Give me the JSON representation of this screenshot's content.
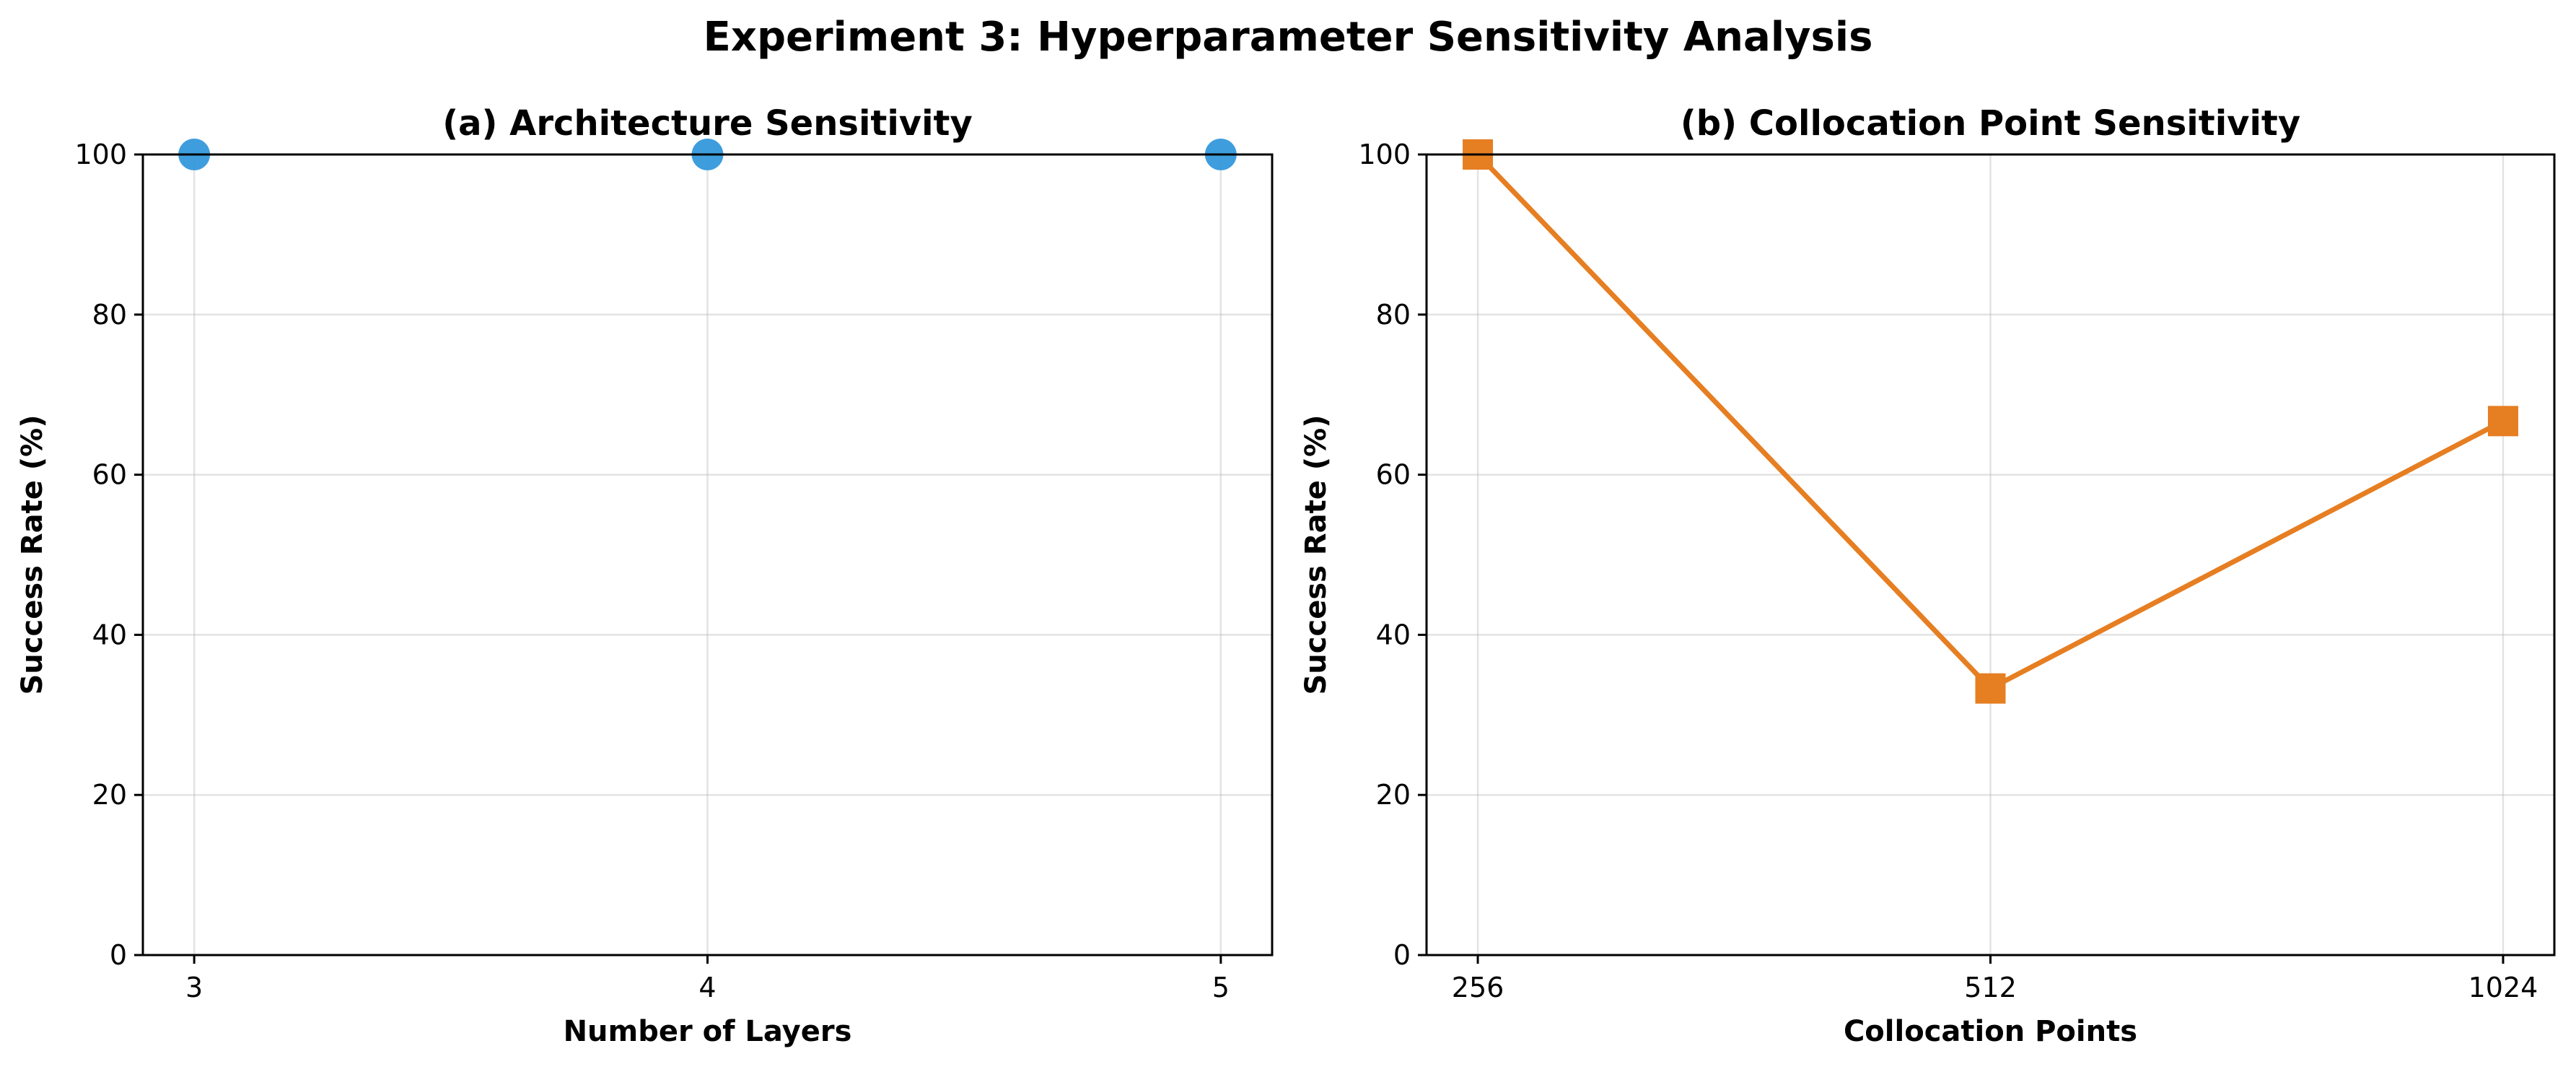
{
  "figure": {
    "title": "Experiment 3: Hyperparameter Sensitivity Analysis"
  },
  "chart_data": [
    {
      "type": "scatter",
      "title": "(a) Architecture Sensitivity",
      "xlabel": "Number of Layers",
      "ylabel": "Success Rate (%)",
      "x": [
        3,
        4,
        5
      ],
      "xtick_labels": [
        "3",
        "4",
        "5"
      ],
      "y": [
        100,
        100,
        100
      ],
      "xlim": [
        2.9,
        5.1
      ],
      "ylim": [
        0,
        100
      ],
      "yticks": [
        0,
        20,
        40,
        60,
        80,
        100
      ],
      "grid": true,
      "marker": "circle",
      "color": "#3498db",
      "line": false
    },
    {
      "type": "line",
      "title": "(b) Collocation Point Sensitivity",
      "xlabel": "Collocation Points",
      "ylabel": "Success Rate (%)",
      "categories": [
        "256",
        "512",
        "1024"
      ],
      "x": [
        256,
        512,
        1024
      ],
      "y": [
        100,
        33.3,
        66.7
      ],
      "ylim": [
        0,
        100
      ],
      "yticks": [
        0,
        20,
        40,
        60,
        80,
        100
      ],
      "grid": true,
      "marker": "square",
      "color": "#e67e22",
      "line": true
    }
  ]
}
